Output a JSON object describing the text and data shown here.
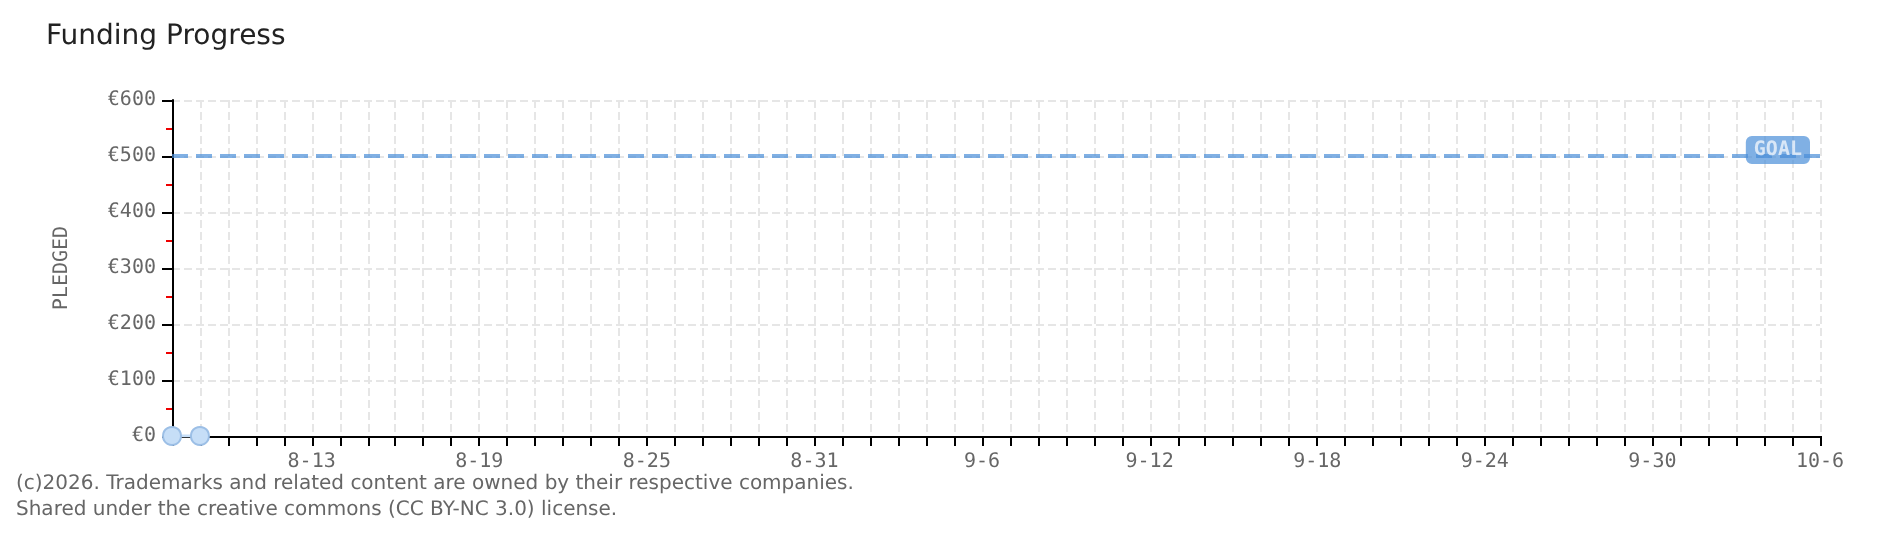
{
  "chart_data": {
    "type": "line",
    "title": "Funding Progress",
    "ylabel": "PLEDGED",
    "x": [
      "--08-08",
      "--08-09"
    ],
    "series": [
      {
        "color": "#c6def7",
        "values": [
          0,
          0
        ]
      }
    ],
    "xlim": [
      "--08-08",
      "--10-06"
    ],
    "xticks": [
      {
        "value": "--08-13",
        "label": "8-13"
      },
      {
        "value": "--08-19",
        "label": "8-19"
      },
      {
        "value": "--08-25",
        "label": "8-25"
      },
      {
        "value": "--08-31",
        "label": "8-31"
      },
      {
        "value": "--09-06",
        "label": "9-6"
      },
      {
        "value": "--09-12",
        "label": "9-12"
      },
      {
        "value": "--09-18",
        "label": "9-18"
      },
      {
        "value": "--09-24",
        "label": "9-24"
      },
      {
        "value": "--09-30",
        "label": "9-30"
      },
      {
        "value": "--10-06",
        "label": "10-6"
      }
    ],
    "ylim": [
      0,
      600
    ],
    "yticks": [
      {
        "value": 0,
        "label": "€0"
      },
      {
        "value": 100,
        "label": "€100"
      },
      {
        "value": 200,
        "label": "€200"
      },
      {
        "value": 300,
        "label": "€300"
      },
      {
        "value": 400,
        "label": "€400"
      },
      {
        "value": 500,
        "label": "€500"
      },
      {
        "value": 600,
        "label": "€600"
      }
    ],
    "ref_lines": [
      {
        "axis": "y",
        "value": 500,
        "label": "GOAL",
        "color": "#4a8fd9",
        "line_style": "dashed"
      }
    ],
    "grid": true,
    "marker": "circle",
    "line_style": "solid",
    "annotations": [
      "(c)2026. Trademarks and related content are owned by their respective companies.",
      "Shared under the creative commons (CC BY-NC 3.0) license."
    ]
  }
}
